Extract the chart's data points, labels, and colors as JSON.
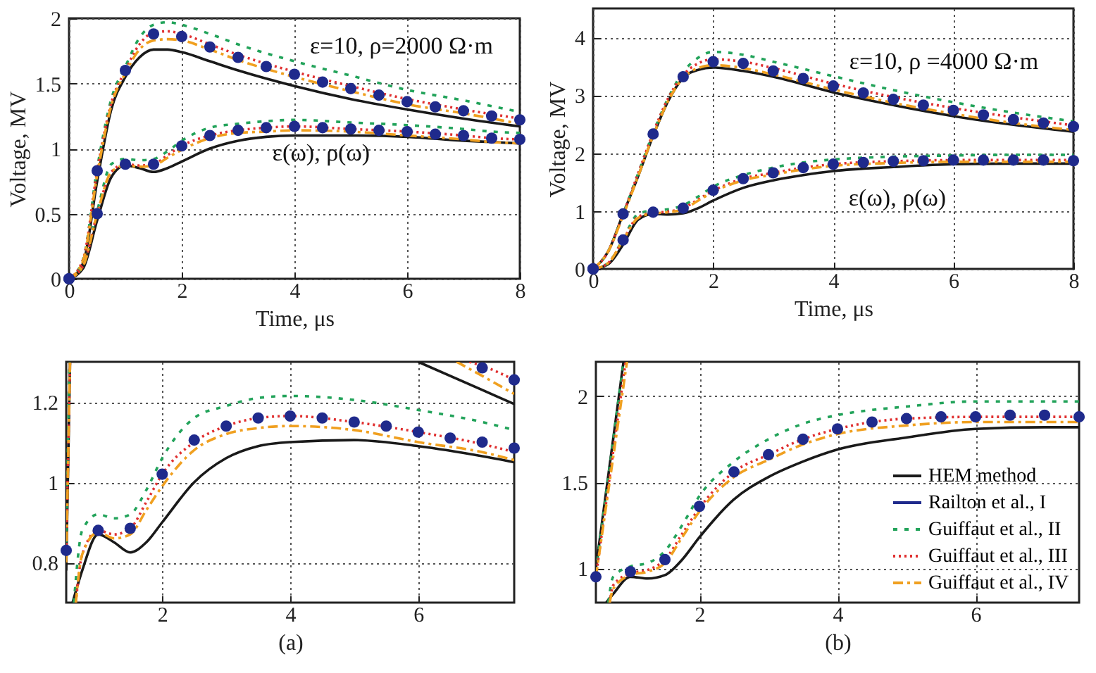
{
  "chart_data": [
    {
      "type": "line",
      "xlabel": "Time, μs",
      "ylabel": "Voltage, MV",
      "xlim": [
        0,
        8
      ],
      "ylim": [
        0,
        2
      ],
      "xticks": [
        0,
        2,
        4,
        6,
        8
      ],
      "yticks": [
        0,
        0.5,
        1,
        1.5,
        2
      ],
      "grid": true,
      "annotations": [
        "ε=10, ρ=2000 Ω·m",
        "ε(ω), ρ(ω)"
      ],
      "series": [
        {
          "color": "#1a1a1a",
          "line_style": "solid",
          "x": [
            0,
            0.25,
            0.5,
            0.75,
            1,
            1.25,
            1.5,
            1.75,
            2,
            2.5,
            3,
            4,
            5,
            6,
            7,
            8
          ],
          "values": [
            0,
            0.12,
            0.75,
            1.3,
            1.55,
            1.7,
            1.76,
            1.76,
            1.74,
            1.67,
            1.6,
            1.48,
            1.38,
            1.3,
            1.23,
            1.17
          ]
        },
        {
          "color": "#22a35a",
          "line_style": "dashed",
          "x": [
            0,
            0.25,
            0.5,
            0.75,
            1,
            1.25,
            1.5,
            1.75,
            2,
            2.5,
            3,
            4,
            5,
            6,
            7,
            8
          ],
          "values": [
            0,
            0.15,
            0.85,
            1.38,
            1.63,
            1.85,
            1.95,
            1.97,
            1.95,
            1.88,
            1.8,
            1.67,
            1.56,
            1.45,
            1.37,
            1.28
          ]
        },
        {
          "color": "#e03030",
          "line_style": "dotted",
          "x": [
            0,
            0.25,
            0.5,
            0.75,
            1,
            1.25,
            1.5,
            1.75,
            2,
            2.5,
            3,
            4,
            5,
            6,
            7,
            8
          ],
          "values": [
            0,
            0.15,
            0.83,
            1.35,
            1.6,
            1.8,
            1.89,
            1.9,
            1.88,
            1.8,
            1.72,
            1.59,
            1.48,
            1.38,
            1.3,
            1.23
          ]
        },
        {
          "color": "#f0a020",
          "line_style": "dashdot",
          "x": [
            0,
            0.25,
            0.5,
            0.75,
            1,
            1.25,
            1.5,
            1.75,
            2,
            2.5,
            3,
            4,
            5,
            6,
            7,
            8
          ],
          "values": [
            0,
            0.14,
            0.8,
            1.33,
            1.58,
            1.76,
            1.83,
            1.84,
            1.83,
            1.76,
            1.68,
            1.55,
            1.44,
            1.34,
            1.27,
            1.19
          ]
        },
        {
          "type": "scatter",
          "marker": "circle",
          "color": "#1f2a8c",
          "x": [
            0,
            0.5,
            1,
            1.5,
            2,
            2.5,
            3,
            3.5,
            4,
            4.5,
            5,
            5.5,
            6,
            6.5,
            7,
            7.5,
            8
          ],
          "values": [
            0,
            0.83,
            1.6,
            1.88,
            1.86,
            1.78,
            1.7,
            1.63,
            1.57,
            1.51,
            1.46,
            1.41,
            1.36,
            1.32,
            1.29,
            1.25,
            1.22
          ]
        },
        {
          "color": "#1a1a1a",
          "line_style": "solid",
          "x": [
            0,
            0.25,
            0.5,
            0.75,
            1,
            1.25,
            1.5,
            1.75,
            2,
            2.5,
            3,
            3.5,
            4,
            5,
            6,
            7,
            7.5,
            8
          ],
          "values": [
            0,
            0.08,
            0.45,
            0.78,
            0.87,
            0.85,
            0.82,
            0.85,
            0.9,
            1.0,
            1.06,
            1.09,
            1.1,
            1.1,
            1.09,
            1.06,
            1.05,
            1.04
          ]
        },
        {
          "color": "#22a35a",
          "line_style": "dashed",
          "x": [
            0,
            0.25,
            0.5,
            0.75,
            1,
            1.25,
            1.5,
            1.75,
            2,
            2.5,
            3,
            3.5,
            4,
            5,
            6,
            7,
            7.5,
            8
          ],
          "values": [
            0,
            0.1,
            0.52,
            0.88,
            0.92,
            0.91,
            0.92,
            0.98,
            1.06,
            1.16,
            1.19,
            1.21,
            1.22,
            1.2,
            1.18,
            1.15,
            1.13,
            1.12
          ]
        },
        {
          "color": "#e03030",
          "line_style": "dotted",
          "x": [
            0,
            0.25,
            0.5,
            0.75,
            1,
            1.25,
            1.5,
            1.75,
            2,
            2.5,
            3,
            3.5,
            4,
            5,
            6,
            7,
            7.5,
            8
          ],
          "values": [
            0,
            0.1,
            0.5,
            0.82,
            0.88,
            0.87,
            0.88,
            0.95,
            1.02,
            1.1,
            1.14,
            1.16,
            1.17,
            1.15,
            1.13,
            1.1,
            1.08,
            1.07
          ]
        },
        {
          "color": "#f0a020",
          "line_style": "dashdot",
          "x": [
            0,
            0.25,
            0.5,
            0.75,
            1,
            1.25,
            1.5,
            1.75,
            2,
            2.5,
            3,
            3.5,
            4,
            5,
            6,
            7,
            7.5,
            8
          ],
          "values": [
            0,
            0.1,
            0.5,
            0.82,
            0.87,
            0.86,
            0.87,
            0.93,
            0.99,
            1.08,
            1.12,
            1.13,
            1.14,
            1.13,
            1.1,
            1.07,
            1.05,
            1.04
          ]
        },
        {
          "type": "scatter",
          "marker": "circle",
          "color": "#1f2a8c",
          "x": [
            0,
            0.5,
            1,
            1.5,
            2,
            2.5,
            3,
            3.5,
            4,
            4.5,
            5,
            5.5,
            6,
            6.5,
            7,
            7.5,
            8
          ],
          "values": [
            0,
            0.5,
            0.88,
            0.88,
            1.02,
            1.1,
            1.14,
            1.16,
            1.17,
            1.16,
            1.15,
            1.14,
            1.13,
            1.11,
            1.1,
            1.08,
            1.07
          ]
        }
      ]
    },
    {
      "type": "line",
      "xlabel": "Time, μs",
      "ylabel": "Voltage, MV",
      "xlim": [
        0,
        8
      ],
      "ylim": [
        0,
        4.5
      ],
      "xticks": [
        0,
        2,
        4,
        6,
        8
      ],
      "yticks": [
        0,
        1,
        2,
        3,
        4
      ],
      "grid": true,
      "annotations": [
        "ε=10, ρ =4000 Ω·m",
        "ε(ω), ρ(ω)"
      ],
      "series": [
        {
          "color": "#1a1a1a",
          "line_style": "solid",
          "x": [
            0,
            0.25,
            0.5,
            0.75,
            1,
            1.25,
            1.5,
            1.75,
            2,
            2.5,
            3,
            4,
            5,
            6,
            7,
            8
          ],
          "values": [
            0,
            0.3,
            0.95,
            1.6,
            2.3,
            2.9,
            3.3,
            3.44,
            3.48,
            3.42,
            3.32,
            3.05,
            2.83,
            2.64,
            2.49,
            2.37
          ]
        },
        {
          "color": "#22a35a",
          "line_style": "dashed",
          "x": [
            0,
            0.25,
            0.5,
            0.75,
            1,
            1.25,
            1.5,
            1.75,
            2,
            2.5,
            3,
            4,
            5,
            6,
            7,
            8
          ],
          "values": [
            0,
            0.3,
            0.95,
            1.65,
            2.35,
            2.95,
            3.4,
            3.65,
            3.75,
            3.7,
            3.58,
            3.33,
            3.09,
            2.88,
            2.7,
            2.55
          ]
        },
        {
          "color": "#e03030",
          "line_style": "dotted",
          "x": [
            0,
            0.25,
            0.5,
            0.75,
            1,
            1.25,
            1.5,
            1.75,
            2,
            2.5,
            3,
            4,
            5,
            6,
            7,
            8
          ],
          "values": [
            0,
            0.3,
            0.95,
            1.65,
            2.35,
            2.95,
            3.35,
            3.55,
            3.62,
            3.58,
            3.47,
            3.2,
            2.97,
            2.78,
            2.62,
            2.48
          ]
        },
        {
          "color": "#f0a020",
          "line_style": "dashdot",
          "x": [
            0,
            0.25,
            0.5,
            0.75,
            1,
            1.25,
            1.5,
            1.75,
            2,
            2.5,
            3,
            4,
            5,
            6,
            7,
            8
          ],
          "values": [
            0,
            0.3,
            0.92,
            1.6,
            2.3,
            2.9,
            3.3,
            3.47,
            3.52,
            3.47,
            3.36,
            3.1,
            2.87,
            2.68,
            2.52,
            2.4
          ]
        },
        {
          "type": "scatter",
          "marker": "circle",
          "color": "#1f2a8c",
          "x": [
            0,
            0.5,
            1,
            1.5,
            2,
            2.5,
            3,
            3.5,
            4,
            4.5,
            5,
            5.5,
            6,
            6.5,
            7,
            7.5,
            8
          ],
          "values": [
            0,
            0.95,
            2.33,
            3.32,
            3.58,
            3.55,
            3.42,
            3.29,
            3.16,
            3.04,
            2.93,
            2.83,
            2.74,
            2.66,
            2.58,
            2.52,
            2.46
          ]
        },
        {
          "color": "#1a1a1a",
          "line_style": "solid",
          "x": [
            0,
            0.25,
            0.5,
            0.75,
            1,
            1.25,
            1.5,
            1.75,
            2,
            2.5,
            3,
            3.5,
            4,
            5,
            6,
            7,
            7.5,
            8
          ],
          "values": [
            0,
            0.08,
            0.42,
            0.85,
            0.95,
            0.94,
            0.96,
            1.05,
            1.18,
            1.4,
            1.53,
            1.62,
            1.69,
            1.76,
            1.81,
            1.82,
            1.82,
            1.82
          ]
        },
        {
          "color": "#22a35a",
          "line_style": "dashed",
          "x": [
            0,
            0.25,
            0.5,
            0.75,
            1,
            1.25,
            1.5,
            1.75,
            2,
            2.5,
            3,
            3.5,
            4,
            5,
            6,
            7,
            7.5,
            8
          ],
          "values": [
            0,
            0.1,
            0.52,
            0.95,
            1.01,
            1.03,
            1.1,
            1.25,
            1.42,
            1.62,
            1.75,
            1.84,
            1.89,
            1.94,
            1.96,
            1.97,
            1.97,
            1.97
          ]
        },
        {
          "color": "#e03030",
          "line_style": "dotted",
          "x": [
            0,
            0.25,
            0.5,
            0.75,
            1,
            1.25,
            1.5,
            1.75,
            2,
            2.5,
            3,
            3.5,
            4,
            5,
            6,
            7,
            7.5,
            8
          ],
          "values": [
            0,
            0.1,
            0.5,
            0.9,
            0.97,
            0.99,
            1.05,
            1.2,
            1.35,
            1.56,
            1.66,
            1.75,
            1.81,
            1.86,
            1.88,
            1.88,
            1.88,
            1.88
          ]
        },
        {
          "color": "#f0a020",
          "line_style": "dashdot",
          "x": [
            0,
            0.25,
            0.5,
            0.75,
            1,
            1.25,
            1.5,
            1.75,
            2,
            2.5,
            3,
            3.5,
            4,
            5,
            6,
            7,
            7.5,
            8
          ],
          "values": [
            0,
            0.1,
            0.5,
            0.88,
            0.96,
            0.98,
            1.03,
            1.18,
            1.33,
            1.53,
            1.63,
            1.72,
            1.78,
            1.83,
            1.85,
            1.85,
            1.85,
            1.85
          ]
        },
        {
          "type": "scatter",
          "marker": "circle",
          "color": "#1f2a8c",
          "x": [
            0,
            0.5,
            1,
            1.5,
            2,
            2.5,
            3,
            3.5,
            4,
            4.5,
            5,
            5.5,
            6,
            6.5,
            7,
            7.5,
            8
          ],
          "values": [
            0,
            0.5,
            0.98,
            1.05,
            1.36,
            1.56,
            1.66,
            1.75,
            1.81,
            1.84,
            1.86,
            1.87,
            1.88,
            1.88,
            1.88,
            1.88,
            1.87
          ]
        }
      ]
    },
    {
      "type": "line",
      "xlabel": "(a)",
      "xlim": [
        0.5,
        7.5
      ],
      "ylim": [
        0.7,
        1.3
      ],
      "xticks": [
        2,
        4,
        6
      ],
      "yticks": [
        0.8,
        1,
        1.2
      ],
      "grid": true,
      "series": [
        {
          "color": "#1a1a1a",
          "line_style": "solid",
          "x": [
            0.5,
            0.56
          ],
          "values": [
            0.78,
            1.3
          ]
        },
        {
          "color": "#22a35a",
          "line_style": "dashed",
          "x": [
            0.5,
            0.55
          ],
          "values": [
            0.85,
            1.3
          ]
        },
        {
          "color": "#e03030",
          "line_style": "dotted",
          "x": [
            0.5,
            0.56
          ],
          "values": [
            0.83,
            1.3
          ]
        },
        {
          "color": "#f0a020",
          "line_style": "dashdot",
          "x": [
            0.5,
            0.56
          ],
          "values": [
            0.8,
            1.3
          ]
        },
        {
          "color": "#1a1a1a",
          "line_style": "solid",
          "x": [
            6,
            7,
            7.5
          ],
          "values": [
            1.3,
            1.23,
            1.195
          ]
        },
        {
          "color": "#e03030",
          "line_style": "dotted",
          "x": [
            6.8,
            7,
            7.5
          ],
          "values": [
            1.3,
            1.29,
            1.255
          ]
        },
        {
          "color": "#f0a020",
          "line_style": "dashdot",
          "x": [
            6.6,
            7,
            7.5
          ],
          "values": [
            1.3,
            1.265,
            1.22
          ]
        },
        {
          "type": "scatter",
          "marker": "circle",
          "color": "#1f2a8c",
          "x": [
            0.5,
            7,
            7.5
          ],
          "values": [
            0.83,
            1.285,
            1.255
          ]
        },
        {
          "color": "#1a1a1a",
          "line_style": "solid",
          "x": [
            0.6,
            0.75,
            1,
            1.25,
            1.5,
            1.75,
            2,
            2.5,
            3,
            3.5,
            4,
            5,
            6,
            7,
            7.5
          ],
          "values": [
            0.7,
            0.78,
            0.87,
            0.85,
            0.825,
            0.85,
            0.9,
            1.0,
            1.06,
            1.09,
            1.1,
            1.105,
            1.09,
            1.065,
            1.05
          ]
        },
        {
          "color": "#22a35a",
          "line_style": "dashed",
          "x": [
            0.62,
            0.75,
            1,
            1.25,
            1.5,
            1.75,
            2,
            2.5,
            3,
            3.5,
            4,
            5,
            6,
            7,
            7.5
          ],
          "values": [
            0.7,
            0.88,
            0.92,
            0.91,
            0.92,
            0.98,
            1.06,
            1.16,
            1.19,
            1.21,
            1.215,
            1.205,
            1.18,
            1.15,
            1.13
          ]
        },
        {
          "color": "#e03030",
          "line_style": "dotted",
          "x": [
            0.65,
            0.75,
            1,
            1.25,
            1.5,
            1.75,
            2,
            2.5,
            3,
            3.5,
            4,
            5,
            6,
            7,
            7.5
          ],
          "values": [
            0.7,
            0.82,
            0.88,
            0.87,
            0.885,
            0.95,
            1.02,
            1.1,
            1.14,
            1.16,
            1.165,
            1.15,
            1.125,
            1.095,
            1.075
          ]
        },
        {
          "color": "#f0a020",
          "line_style": "dashdot",
          "x": [
            0.65,
            0.75,
            1,
            1.25,
            1.5,
            1.75,
            2,
            2.5,
            3,
            3.5,
            4,
            5,
            6,
            7,
            7.5
          ],
          "values": [
            0.7,
            0.82,
            0.875,
            0.86,
            0.87,
            0.93,
            0.99,
            1.08,
            1.12,
            1.135,
            1.14,
            1.13,
            1.1,
            1.075,
            1.055
          ]
        },
        {
          "type": "scatter",
          "marker": "circle",
          "color": "#1f2a8c",
          "x": [
            1,
            1.5,
            2,
            2.5,
            3,
            3.5,
            4,
            4.5,
            5,
            5.5,
            6,
            6.5,
            7,
            7.5
          ],
          "values": [
            0.88,
            0.885,
            1.02,
            1.105,
            1.14,
            1.16,
            1.165,
            1.16,
            1.15,
            1.14,
            1.125,
            1.11,
            1.1,
            1.085
          ]
        }
      ]
    },
    {
      "type": "line",
      "xlabel": "(b)",
      "xlim": [
        0.5,
        7.5
      ],
      "ylim": [
        0.8,
        2.2
      ],
      "xticks": [
        2,
        4,
        6
      ],
      "yticks": [
        1,
        1.5,
        2
      ],
      "grid": true,
      "legend": "bottom right",
      "series": [
        {
          "color": "#1a1a1a",
          "line_style": "solid",
          "x": [
            0.5,
            0.9
          ],
          "values": [
            1.0,
            2.2
          ]
        },
        {
          "color": "#22a35a",
          "line_style": "dashed",
          "x": [
            0.5,
            0.9
          ],
          "values": [
            0.98,
            2.2
          ]
        },
        {
          "color": "#e03030",
          "line_style": "dotted",
          "x": [
            0.5,
            0.93
          ],
          "values": [
            0.95,
            2.2
          ]
        },
        {
          "color": "#f0a020",
          "line_style": "dashdot",
          "x": [
            0.5,
            0.95
          ],
          "values": [
            0.95,
            2.2
          ]
        },
        {
          "type": "scatter",
          "marker": "circle",
          "color": "#1f2a8c",
          "x": [
            0.5
          ],
          "values": [
            0.95
          ]
        },
        {
          "name": "HEM method",
          "color": "#1a1a1a",
          "line_style": "solid",
          "x": [
            0.65,
            0.75,
            1,
            1.25,
            1.5,
            1.75,
            2,
            2.5,
            3,
            3.5,
            4,
            5,
            6,
            7,
            7.5
          ],
          "values": [
            0.8,
            0.85,
            0.95,
            0.94,
            0.96,
            1.05,
            1.18,
            1.4,
            1.53,
            1.62,
            1.69,
            1.76,
            1.81,
            1.82,
            1.82
          ]
        },
        {
          "name": "Railton et al., I",
          "type": "scatter",
          "marker": "circle",
          "color": "#1f2a8c",
          "x": [
            1,
            1.5,
            2,
            2.5,
            3,
            3.5,
            4,
            4.5,
            5,
            5.5,
            6,
            6.5,
            7,
            7.5
          ],
          "values": [
            0.98,
            1.05,
            1.36,
            1.56,
            1.66,
            1.75,
            1.81,
            1.85,
            1.87,
            1.88,
            1.88,
            1.89,
            1.89,
            1.88
          ]
        },
        {
          "name": "Guiffaut et al., II",
          "color": "#22a35a",
          "line_style": "dashed",
          "x": [
            0.68,
            0.75,
            1,
            1.25,
            1.5,
            1.75,
            2,
            2.5,
            3,
            3.5,
            4,
            5,
            6,
            7,
            7.5
          ],
          "values": [
            0.8,
            0.95,
            1.01,
            1.03,
            1.1,
            1.25,
            1.42,
            1.62,
            1.75,
            1.84,
            1.89,
            1.94,
            1.97,
            1.97,
            1.97
          ]
        },
        {
          "name": "Guiffaut et al., III",
          "color": "#e03030",
          "line_style": "dotted",
          "x": [
            0.7,
            0.75,
            1,
            1.25,
            1.5,
            1.75,
            2,
            2.5,
            3,
            3.5,
            4,
            5,
            6,
            7,
            7.5
          ],
          "values": [
            0.8,
            0.9,
            0.97,
            0.99,
            1.05,
            1.2,
            1.35,
            1.56,
            1.66,
            1.75,
            1.81,
            1.87,
            1.88,
            1.88,
            1.88
          ]
        },
        {
          "name": "Guiffaut et al., IV",
          "color": "#f0a020",
          "line_style": "dashdot",
          "x": [
            0.7,
            0.75,
            1,
            1.25,
            1.5,
            1.75,
            2,
            2.5,
            3,
            3.5,
            4,
            5,
            6,
            7,
            7.5
          ],
          "values": [
            0.8,
            0.88,
            0.96,
            0.98,
            1.03,
            1.18,
            1.33,
            1.53,
            1.63,
            1.72,
            1.78,
            1.83,
            1.85,
            1.85,
            1.85
          ]
        }
      ]
    }
  ]
}
